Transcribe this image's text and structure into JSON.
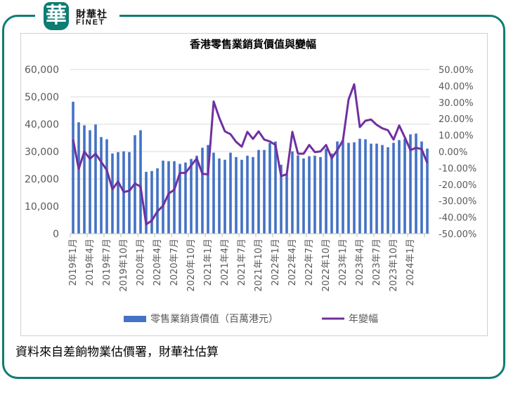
{
  "brand": {
    "logo_char": "華",
    "name_cn": "財華社",
    "name_en": "FINET"
  },
  "footer": "資料來自差餉物業估價署，財華社估算",
  "colors": {
    "frame": "#0e7d74",
    "bar": "#4472c4",
    "line": "#7030a0",
    "grid": "#d9d9d9"
  },
  "chart_data": {
    "type": "bar+line",
    "title": "香港零售業銷貨價值與變幅",
    "x_tick_labels": [
      "2019年1月",
      "2019年4月",
      "2019年7月",
      "2019年10月",
      "2020年1月",
      "2020年4月",
      "2020年7月",
      "2020年10月",
      "2021年1月",
      "2021年4月",
      "2021年7月",
      "2021年10月",
      "2022年1月",
      "2022年4月",
      "2022年7月",
      "2022年10月",
      "2023年1月",
      "2023年4月",
      "2023年7月",
      "2023年10月",
      "2024年1月"
    ],
    "y_left": {
      "min": 0,
      "max": 60000,
      "step": 10000,
      "ticks": [
        "0",
        "10,000",
        "20,000",
        "30,000",
        "40,000",
        "50,000",
        "60,000"
      ]
    },
    "y_right": {
      "min": -50,
      "max": 50,
      "step": 10,
      "ticks": [
        "-50.00%",
        "-40.00%",
        "-30.00%",
        "-20.00%",
        "-10.00%",
        "0.00%",
        "10.00%",
        "20.00%",
        "30.00%",
        "40.00%",
        "50.00%"
      ]
    },
    "grid": true,
    "legend_position": "bottom",
    "series": [
      {
        "name": "零售業銷貨價值（百萬港元）",
        "type": "bar",
        "axis": "left",
        "values": [
          48200,
          40700,
          39600,
          37800,
          39900,
          35300,
          34500,
          29300,
          29800,
          30100,
          29800,
          36000,
          37800,
          22600,
          22900,
          23900,
          26700,
          26500,
          26500,
          25500,
          26000,
          27300,
          28500,
          31400,
          32400,
          29600,
          27500,
          27000,
          29600,
          28000,
          27000,
          28500,
          28000,
          30600,
          30600,
          33200,
          33700,
          25200,
          21900,
          30100,
          28600,
          27500,
          28300,
          28500,
          28000,
          31100,
          29300,
          33700,
          34200,
          33200,
          33400,
          34700,
          34500,
          32900,
          32900,
          32400,
          31600,
          33200,
          34200,
          34700,
          36300,
          36600,
          33700,
          31100
        ]
      },
      {
        "name": "年變幅",
        "type": "line",
        "axis": "right",
        "values": [
          7.3,
          -10.6,
          0,
          -4.4,
          -1.3,
          -6.3,
          -11.3,
          -23,
          -18.2,
          -24.6,
          -23.9,
          -19.5,
          -21.3,
          -44.3,
          -42,
          -36.4,
          -33,
          -25.6,
          -23.2,
          -13,
          -13,
          -8.5,
          -4.2,
          -13.5,
          -13.9,
          30.5,
          20.6,
          12.3,
          10.6,
          5.9,
          3,
          12,
          7.7,
          12.3,
          7.3,
          6.2,
          4,
          -14.9,
          -13.8,
          12,
          -1.3,
          -1.3,
          4,
          -0.3,
          0.1,
          4,
          -4,
          0.9,
          6.9,
          31.7,
          41,
          14.9,
          18.8,
          19.5,
          16.3,
          14.2,
          13,
          7.3,
          15.9,
          8.7,
          0.9,
          2.3,
          1.5,
          -7
        ]
      }
    ]
  }
}
